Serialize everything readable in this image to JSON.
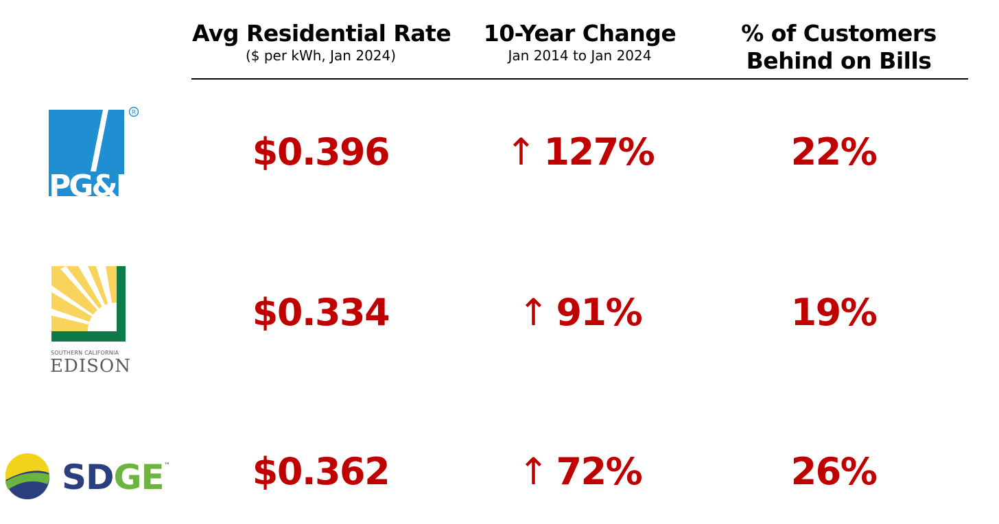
{
  "headers": {
    "rate": {
      "title": "Avg Residential Rate",
      "sub": "($ per kWh, Jan 2024)"
    },
    "change": {
      "title": "10-Year Change",
      "sub": "Jan 2014 to Jan 2024"
    },
    "behind": {
      "title_line1": "% of Customers",
      "title_line2": "Behind on Bills"
    }
  },
  "rows": [
    {
      "logo_icon": "pge-logo-icon",
      "logo_text": "PG&E",
      "rate": "$0.396",
      "arrow": "↑",
      "change": "127%",
      "behind": "22%"
    },
    {
      "logo_icon": "sce-logo-icon",
      "logo_text_small": "SOUTHERN CALIFORNIA",
      "logo_text": "EDISON",
      "rate": "$0.334",
      "arrow": "↑",
      "change": "91%",
      "behind": "19%"
    },
    {
      "logo_icon": "sdge-logo-icon",
      "logo_text_sd": "SD",
      "logo_text_ge": "GE",
      "logo_tm": "™",
      "rate": "$0.362",
      "arrow": "↑",
      "change": "72%",
      "behind": "26%"
    }
  ],
  "colors": {
    "value_red": "#c00000",
    "pge_blue": "#1f8fd2",
    "pge_gold": "#f6b51e",
    "sce_yellow": "#f8d45c",
    "sce_green": "#0e7a4a",
    "sdge_navy": "#2b3e7e",
    "sdge_green": "#6cb33f"
  }
}
